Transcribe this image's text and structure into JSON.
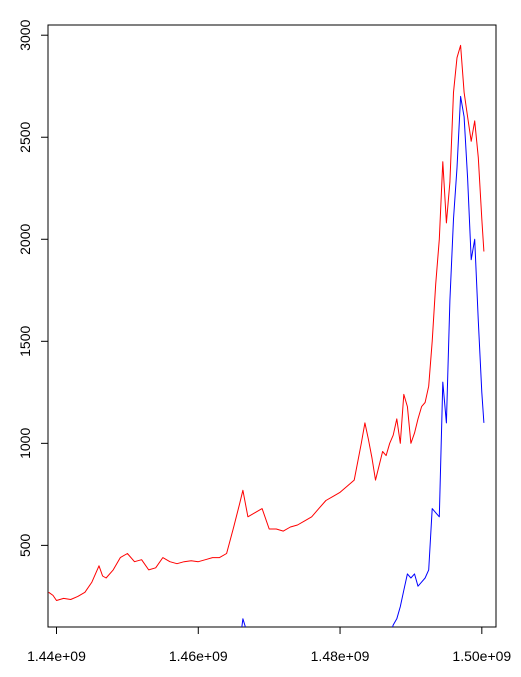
{
  "chart_data": {
    "type": "line",
    "title": "",
    "xlabel": "",
    "ylabel": "",
    "xlim": [
      1438800000,
      1502000000
    ],
    "ylim": [
      100,
      3050
    ],
    "x_ticks": [
      1440000000,
      1460000000,
      1480000000,
      1500000000
    ],
    "x_tick_labels": [
      "1.44e+09",
      "1.46e+09",
      "1.48e+09",
      "1.50e+09"
    ],
    "y_ticks": [
      500,
      1000,
      1500,
      2000,
      2500,
      3000
    ],
    "y_tick_labels": [
      "500",
      "1000",
      "1500",
      "2000",
      "2500",
      "3000"
    ],
    "grid": false,
    "series": [
      {
        "color": "#ff0000",
        "x": [
          1438900000,
          1439500000,
          1440000000,
          1441000000,
          1442000000,
          1443000000,
          1444000000,
          1445000000,
          1446000000,
          1446500000,
          1447000000,
          1448000000,
          1449000000,
          1450000000,
          1451000000,
          1452000000,
          1453000000,
          1454000000,
          1455000000,
          1456000000,
          1457000000,
          1458000000,
          1459000000,
          1460000000,
          1461000000,
          1462000000,
          1463000000,
          1464000000,
          1465000000,
          1465800000,
          1466300000,
          1467000000,
          1468000000,
          1469000000,
          1470000000,
          1471000000,
          1472000000,
          1473000000,
          1474000000,
          1475000000,
          1476000000,
          1477000000,
          1478000000,
          1479000000,
          1480000000,
          1481000000,
          1482000000,
          1483000000,
          1483500000,
          1484000000,
          1484500000,
          1485000000,
          1486000000,
          1486500000,
          1487000000,
          1487500000,
          1488000000,
          1488500000,
          1489000000,
          1489500000,
          1490000000,
          1490500000,
          1491000000,
          1491500000,
          1492000000,
          1492500000,
          1493000000,
          1493500000,
          1494000000,
          1494500000,
          1495000000,
          1495500000,
          1496000000,
          1496500000,
          1497000000,
          1497500000,
          1498000000,
          1498500000,
          1499000000,
          1499500000,
          1500000000,
          1500300000
        ],
        "y": [
          270,
          255,
          230,
          240,
          235,
          250,
          270,
          320,
          400,
          350,
          340,
          380,
          440,
          460,
          420,
          430,
          380,
          390,
          440,
          420,
          410,
          420,
          425,
          420,
          430,
          440,
          440,
          460,
          590,
          700,
          770,
          640,
          660,
          680,
          580,
          580,
          570,
          590,
          600,
          620,
          640,
          680,
          720,
          740,
          760,
          790,
          820,
          1000,
          1100,
          1020,
          930,
          820,
          960,
          940,
          1000,
          1040,
          1120,
          1000,
          1240,
          1180,
          1000,
          1050,
          1120,
          1180,
          1200,
          1280,
          1500,
          1780,
          2000,
          2380,
          2080,
          2280,
          2720,
          2890,
          2950,
          2720,
          2600,
          2480,
          2580,
          2400,
          2100,
          1940
        ]
      },
      {
        "color": "#0000ff",
        "x": [
          1438900000,
          1446000000,
          1466000000,
          1466300000,
          1467000000,
          1487000000,
          1487500000,
          1488000000,
          1488500000,
          1489000000,
          1489500000,
          1490000000,
          1490500000,
          1491000000,
          1491500000,
          1492000000,
          1492500000,
          1493000000,
          1493500000,
          1494000000,
          1494500000,
          1495000000,
          1495500000,
          1496000000,
          1496500000,
          1497000000,
          1497500000,
          1498000000,
          1498500000,
          1499000000,
          1499500000,
          1500000000,
          1500300000
        ],
        "y": [
          40,
          60,
          60,
          140,
          60,
          60,
          110,
          140,
          200,
          280,
          360,
          340,
          360,
          300,
          320,
          340,
          380,
          680,
          660,
          640,
          1300,
          1100,
          1700,
          2100,
          2350,
          2700,
          2600,
          2300,
          1900,
          2000,
          1600,
          1250,
          1100
        ]
      }
    ]
  }
}
